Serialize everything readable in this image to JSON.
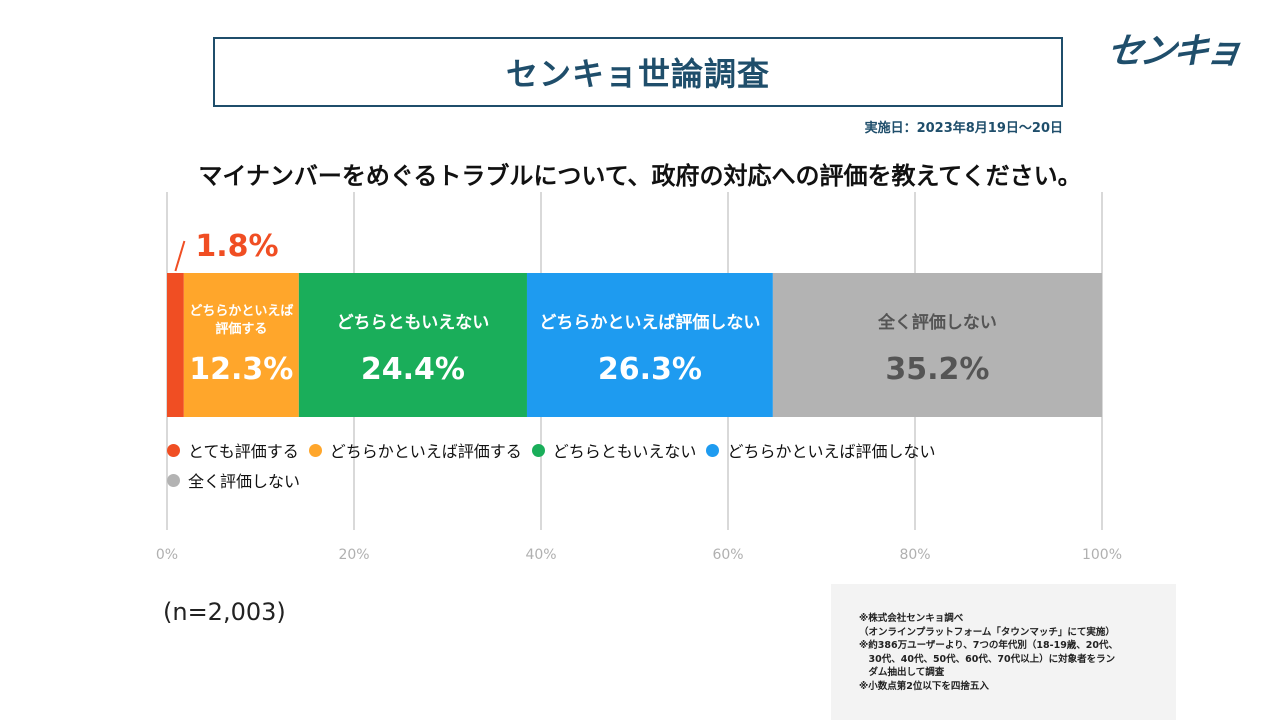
{
  "header": {
    "title": "センキョ世論調査",
    "logo": "センキョ",
    "survey_date": "実施日：2023年8月19日〜20日",
    "question": "マイナンバーをめぐるトラブルについて、政府の対応への評価を教えてください。"
  },
  "chart_data": {
    "type": "bar",
    "orientation": "horizontal-stacked-100",
    "categories": [
      "とても評価する",
      "どちらかといえば評価する",
      "どちらともいえない",
      "どちらかといえば評価しない",
      "全く評価しない"
    ],
    "values": [
      1.8,
      12.3,
      24.4,
      26.3,
      35.2
    ],
    "value_labels": [
      "1.8%",
      "12.3%",
      "24.4%",
      "26.3%",
      "35.2%"
    ],
    "segment_labels": [
      "",
      "どちらかといえば\n評価する",
      "どちらともいえない",
      "どちらかといえば評価しない",
      "全く評価しない"
    ],
    "colors": [
      "#f04e23",
      "#ffa62b",
      "#1aae5a",
      "#1e9bf0",
      "#b3b3b3"
    ],
    "label_colors": [
      "#f04e23",
      "#ffffff",
      "#ffffff",
      "#ffffff",
      "#555555"
    ],
    "x_ticks": [
      "0%",
      "20%",
      "40%",
      "60%",
      "80%",
      "100%"
    ],
    "xlim": [
      0,
      100
    ],
    "grid": true,
    "legend_position": "below"
  },
  "legend": {
    "items": [
      {
        "label": "とても評価する",
        "color": "#f04e23"
      },
      {
        "label": "どちらかといえば評価する",
        "color": "#ffa62b"
      },
      {
        "label": "どちらともいえない",
        "color": "#1aae5a"
      },
      {
        "label": "どちらかといえば評価しない",
        "color": "#1e9bf0"
      },
      {
        "label": "全く評価しない",
        "color": "#b3b3b3"
      }
    ]
  },
  "sample": "(n=2,003)",
  "notes": {
    "lines": [
      "※株式会社センキョ調べ",
      "（オンラインプラットフォーム「タウンマッチ」にて実施）",
      "※約386万ユーザーより、7つの年代別（18-19歳、20代、",
      "　30代、40代、50代、60代、70代以上）に対象者をラン",
      "　ダム抽出して調査",
      "※小数点第2位以下を四捨五入"
    ]
  },
  "colors": {
    "brand": "#1f4e6b",
    "notes_bg": "#f3f3f3"
  }
}
